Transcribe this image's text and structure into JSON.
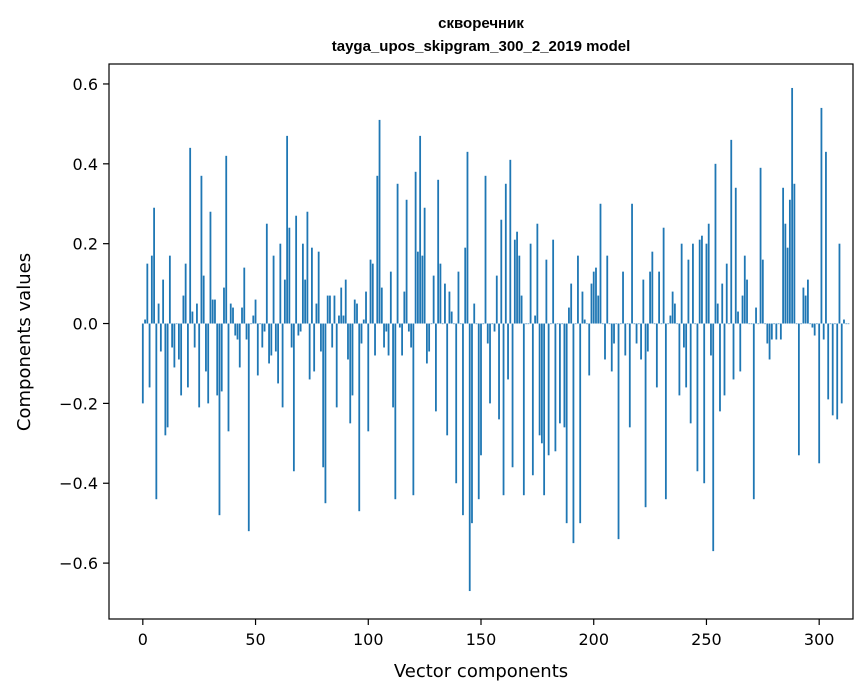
{
  "chart_data": {
    "type": "bar",
    "title": "скворечник",
    "subtitle": "tayga_upos_skipgram_300_2_2019 model",
    "xlabel": "Vector components",
    "ylabel": "Components values",
    "xlim": [
      -15,
      315
    ],
    "ylim": [
      -0.74,
      0.65
    ],
    "xticks": [
      0,
      50,
      100,
      150,
      200,
      250,
      300
    ],
    "yticks": [
      -0.6,
      -0.4,
      -0.2,
      0.0,
      0.2,
      0.4,
      0.6
    ],
    "ytick_labels": [
      "−0.6",
      "−0.4",
      "−0.2",
      "0.0",
      "0.2",
      "0.4",
      "0.6"
    ],
    "bar_color": "#1f77b4",
    "grid": false,
    "values": [
      -0.2,
      0.01,
      0.15,
      -0.16,
      0.17,
      0.29,
      -0.44,
      0.05,
      -0.07,
      0.11,
      -0.28,
      -0.26,
      0.17,
      -0.06,
      -0.11,
      0.0,
      -0.09,
      -0.18,
      0.07,
      0.15,
      -0.16,
      0.44,
      0.03,
      -0.06,
      0.05,
      -0.21,
      0.37,
      0.12,
      -0.12,
      -0.2,
      0.28,
      0.06,
      0.06,
      -0.18,
      -0.48,
      -0.17,
      0.09,
      0.42,
      -0.27,
      0.05,
      0.04,
      -0.03,
      -0.04,
      -0.11,
      0.04,
      0.14,
      -0.04,
      -0.52,
      0.0,
      0.02,
      0.06,
      -0.13,
      0.0,
      -0.06,
      -0.02,
      0.25,
      -0.1,
      -0.08,
      0.17,
      -0.07,
      -0.15,
      0.2,
      -0.21,
      0.11,
      0.47,
      0.24,
      -0.06,
      -0.37,
      0.27,
      -0.03,
      -0.02,
      0.2,
      0.11,
      0.28,
      -0.14,
      0.19,
      -0.12,
      0.05,
      0.18,
      -0.07,
      -0.36,
      -0.45,
      0.07,
      0.07,
      -0.06,
      0.07,
      -0.21,
      0.02,
      0.09,
      0.02,
      0.11,
      -0.09,
      -0.25,
      -0.18,
      0.06,
      0.05,
      -0.47,
      -0.05,
      0.01,
      0.08,
      -0.27,
      0.16,
      0.15,
      -0.08,
      0.37,
      0.51,
      0.09,
      -0.06,
      -0.02,
      -0.08,
      0.13,
      -0.21,
      -0.44,
      0.35,
      -0.01,
      -0.08,
      0.08,
      0.31,
      -0.02,
      -0.06,
      -0.43,
      0.38,
      0.18,
      0.47,
      0.17,
      0.29,
      -0.1,
      -0.07,
      0.0,
      0.12,
      -0.22,
      0.36,
      0.15,
      0.0,
      0.1,
      -0.28,
      0.08,
      0.03,
      0.0,
      -0.4,
      0.13,
      0.0,
      -0.48,
      0.19,
      0.43,
      -0.67,
      -0.5,
      0.05,
      0.0,
      -0.44,
      -0.33,
      0.0,
      0.37,
      -0.05,
      -0.2,
      0.0,
      -0.02,
      0.12,
      -0.24,
      0.26,
      -0.43,
      0.35,
      -0.14,
      0.41,
      -0.36,
      0.21,
      0.23,
      0.17,
      0.07,
      -0.43,
      0.0,
      0.0,
      0.2,
      -0.38,
      0.02,
      0.25,
      -0.28,
      -0.3,
      -0.43,
      0.16,
      -0.33,
      0.0,
      0.21,
      -0.32,
      0.0,
      -0.25,
      0.0,
      -0.26,
      -0.5,
      0.04,
      0.1,
      -0.55,
      0.0,
      0.17,
      -0.5,
      0.08,
      0.01,
      0.0,
      -0.13,
      0.1,
      0.13,
      0.14,
      0.07,
      0.3,
      0.0,
      -0.09,
      0.17,
      0.0,
      -0.12,
      -0.05,
      0.0,
      -0.54,
      0.0,
      0.13,
      -0.08,
      0.0,
      -0.26,
      0.3,
      0.0,
      -0.05,
      0.0,
      -0.09,
      0.11,
      -0.46,
      -0.07,
      0.13,
      0.18,
      0.0,
      -0.16,
      0.13,
      0.0,
      0.24,
      -0.44,
      0.0,
      0.02,
      0.08,
      0.05,
      0.0,
      -0.18,
      0.2,
      -0.06,
      -0.16,
      0.16,
      -0.25,
      0.2,
      0.0,
      -0.37,
      0.21,
      0.22,
      -0.4,
      0.2,
      0.25,
      -0.08,
      -0.57,
      0.4,
      0.05,
      -0.22,
      0.1,
      -0.18,
      0.15,
      0.0,
      0.46,
      -0.14,
      0.34,
      0.03,
      -0.12,
      0.07,
      0.17,
      0.11,
      0.0,
      0.0,
      -0.44,
      0.04,
      0.0,
      0.39,
      0.16,
      0.0,
      -0.05,
      -0.09,
      -0.04,
      0.0,
      -0.04,
      0.0,
      -0.04,
      0.34,
      0.25,
      0.19,
      0.31,
      0.59,
      0.35,
      0.0,
      -0.33,
      0.0,
      0.09,
      0.07,
      0.11,
      0.0,
      -0.01,
      -0.03,
      0.0,
      -0.35,
      0.54,
      -0.04,
      0.43,
      -0.19,
      0.0,
      -0.23,
      0.0,
      -0.24,
      0.2,
      -0.2,
      0.01,
      0.0,
      0.0
    ]
  }
}
